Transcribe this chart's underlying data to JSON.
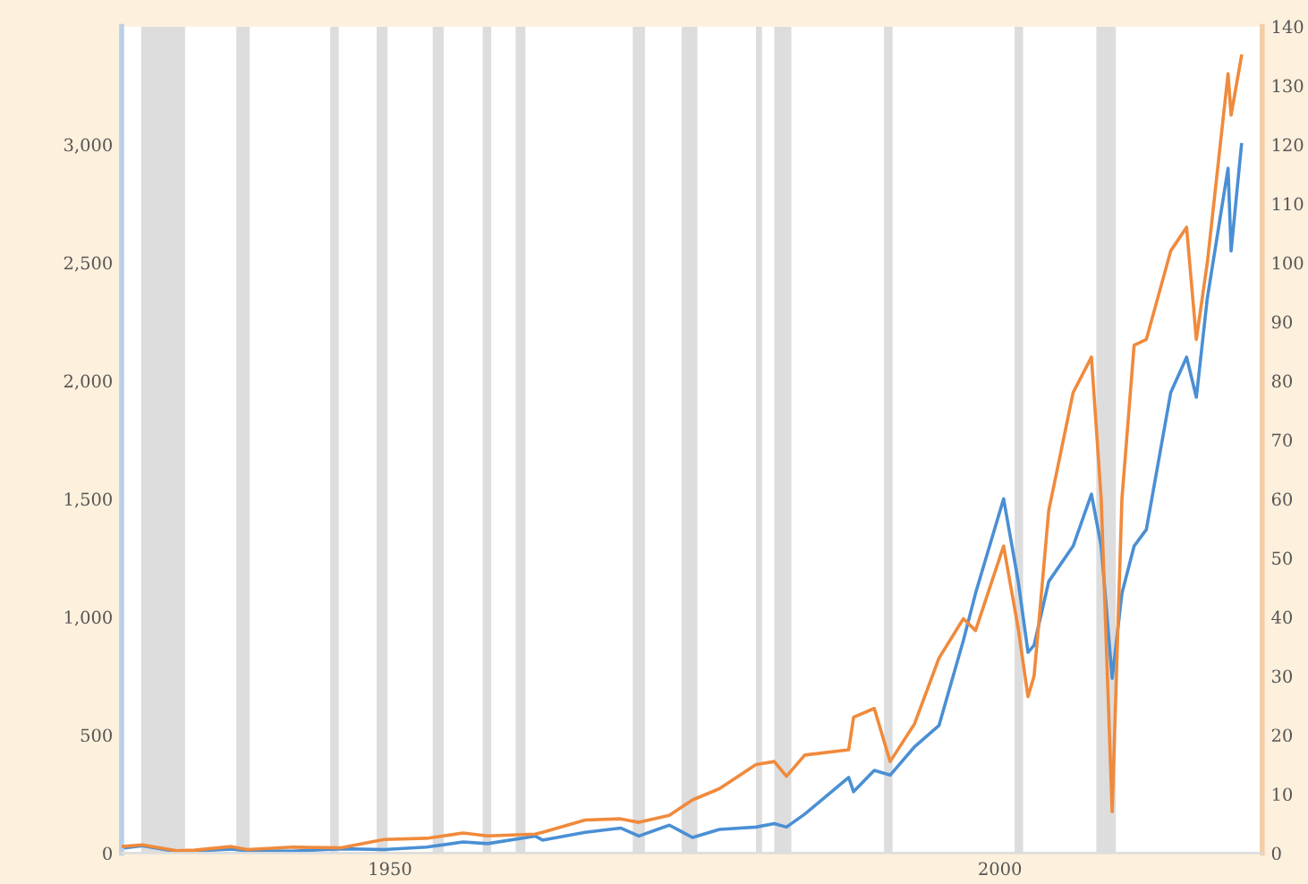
{
  "chart_data": {
    "type": "line",
    "xlim": [
      1928,
      2021.5
    ],
    "xticks": [
      1950,
      2000
    ],
    "ylim": [
      0,
      3500
    ],
    "yticks": [
      0,
      500,
      {
        "value": 1000,
        "label": "1,000"
      },
      {
        "value": 1500,
        "label": "1,500"
      },
      {
        "value": 2000,
        "label": "2,000"
      },
      {
        "value": 2500,
        "label": "2,500"
      },
      {
        "value": 3000,
        "label": "3,000"
      }
    ],
    "y2lim": [
      0,
      140
    ],
    "y2ticks": [
      0,
      10,
      20,
      30,
      40,
      50,
      60,
      70,
      80,
      90,
      100,
      110,
      120,
      130,
      140
    ],
    "x": [
      1928.0,
      1929.7,
      1932.5,
      1934,
      1937,
      1938.3,
      1942,
      1946,
      1949.5,
      1953,
      1956,
      1958,
      1961.9,
      1962.5,
      1966,
      1968.9,
      1970.4,
      1972.9,
      1974.8,
      1977,
      1980,
      1981.5,
      1982.5,
      1984,
      1987.6,
      1988,
      1989.7,
      1991,
      1993,
      1995,
      1997,
      1998,
      2000.3,
      2001.5,
      2002.3,
      2002.8,
      2004,
      2006,
      2007.5,
      2008.3,
      2009.2,
      2010,
      2011,
      2012,
      2014,
      2015.3,
      2016.1,
      2017,
      2018.7,
      2018.95,
      2019.8
    ],
    "series": [
      {
        "color": "#4a8fd4",
        "values": [
          20,
          31,
          6,
          9,
          17,
          10,
          8,
          18,
          15,
          25,
          47,
          40,
          72,
          55,
          88,
          106,
          72,
          118,
          66,
          100,
          110,
          125,
          110,
          165,
          320,
          260,
          350,
          330,
          450,
          540,
          900,
          1100,
          1500,
          1150,
          850,
          880,
          1150,
          1300,
          1520,
          1300,
          740,
          1100,
          1300,
          1370,
          1950,
          2100,
          1930,
          2350,
          2900,
          2550,
          3000
        ]
      },
      {
        "color": "#f08a3c",
        "axis": "y2",
        "values": [
          1.1,
          1.4,
          0.4,
          0.5,
          1.1,
          0.6,
          1.0,
          0.9,
          2.3,
          2.5,
          3.4,
          2.9,
          3.2,
          3.5,
          5.6,
          5.8,
          5.2,
          6.4,
          9.0,
          10.9,
          15.0,
          15.5,
          13.0,
          16.6,
          17.5,
          23.0,
          24.5,
          15.5,
          21.9,
          33.0,
          39.7,
          37.7,
          52.0,
          38.0,
          26.5,
          30.0,
          58.0,
          78.0,
          84.0,
          60.0,
          7.0,
          60.0,
          86.0,
          87.0,
          102.0,
          106.0,
          87.0,
          100.0,
          132.0,
          125.0,
          135.0
        ]
      }
    ],
    "bands": [
      {
        "axis": "x",
        "from": 1929.6,
        "to": 1933.2,
        "color": "#dddddd"
      },
      {
        "axis": "x",
        "from": 1937.4,
        "to": 1938.5,
        "color": "#dddddd"
      },
      {
        "axis": "x",
        "from": 1945.1,
        "to": 1945.8,
        "color": "#dddddd"
      },
      {
        "axis": "x",
        "from": 1948.9,
        "to": 1949.8,
        "color": "#dddddd"
      },
      {
        "axis": "x",
        "from": 1953.5,
        "to": 1954.4,
        "color": "#dddddd"
      },
      {
        "axis": "x",
        "from": 1957.6,
        "to": 1958.3,
        "color": "#dddddd"
      },
      {
        "axis": "x",
        "from": 1960.3,
        "to": 1961.1,
        "color": "#dddddd"
      },
      {
        "axis": "x",
        "from": 1969.9,
        "to": 1970.9,
        "color": "#dddddd"
      },
      {
        "axis": "x",
        "from": 1973.9,
        "to": 1975.2,
        "color": "#dddddd"
      },
      {
        "axis": "x",
        "from": 1980.0,
        "to": 1980.5,
        "color": "#dddddd"
      },
      {
        "axis": "x",
        "from": 1981.5,
        "to": 1982.9,
        "color": "#dddddd"
      },
      {
        "axis": "x",
        "from": 1990.5,
        "to": 1991.2,
        "color": "#dddddd"
      },
      {
        "axis": "x",
        "from": 2001.2,
        "to": 2001.9,
        "color": "#dddddd"
      },
      {
        "axis": "x",
        "from": 2007.9,
        "to": 2009.5,
        "color": "#dddddd"
      }
    ]
  }
}
